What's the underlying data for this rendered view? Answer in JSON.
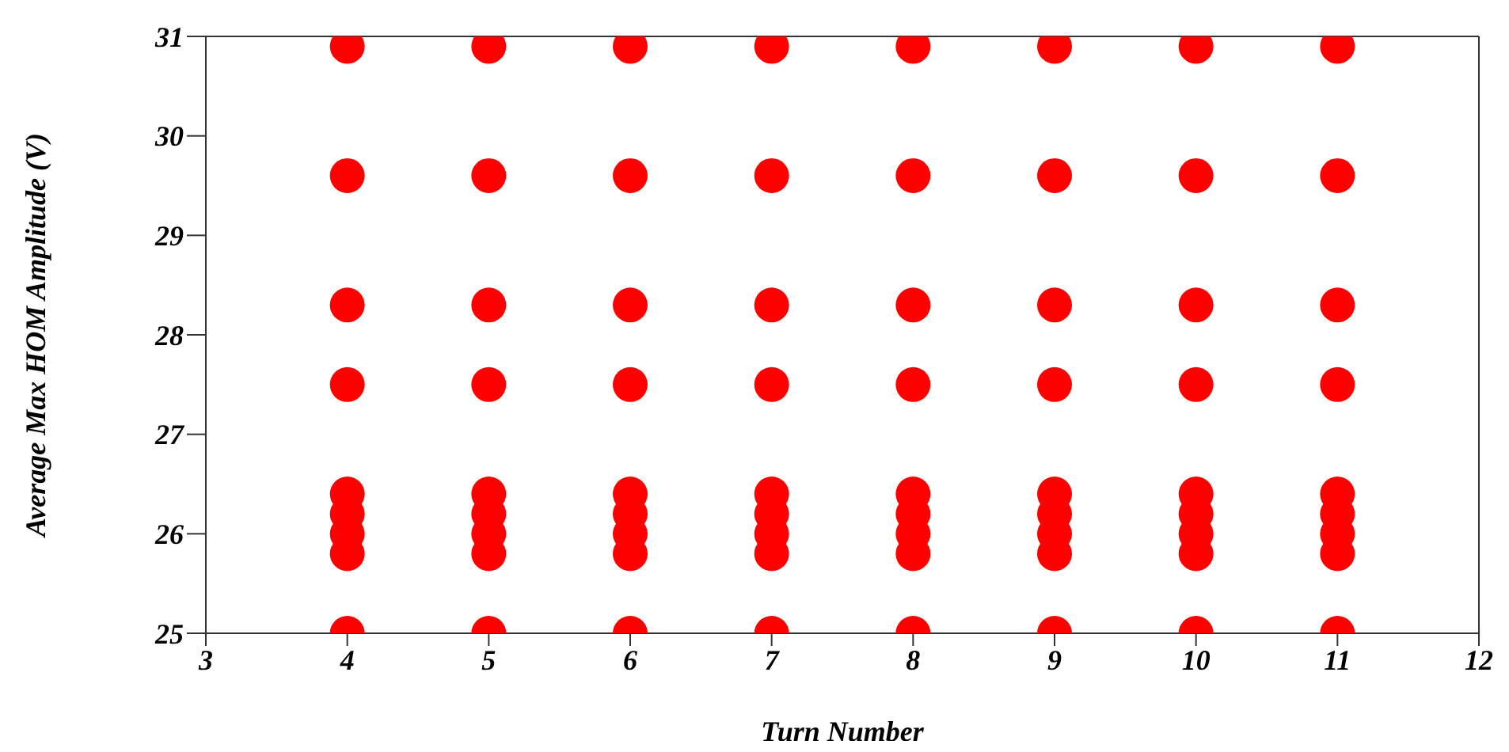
{
  "chart_data": {
    "type": "scatter",
    "xlabel": "Turn Number",
    "ylabel": "Average Max HOM Amplitude (V)",
    "xlim": [
      3,
      12
    ],
    "xticks": [
      3,
      4,
      5,
      6,
      7,
      8,
      9,
      10,
      11,
      12
    ],
    "ylim": [
      25,
      31
    ],
    "yticks": [
      25,
      26,
      27,
      28,
      29,
      30,
      31
    ],
    "legend": false,
    "marker": "circle",
    "series": [
      {
        "color": "#ff0000",
        "x": [
          4,
          4,
          4,
          4,
          4,
          4,
          4,
          4,
          4,
          5,
          5,
          5,
          5,
          5,
          5,
          5,
          5,
          5,
          6,
          6,
          6,
          6,
          6,
          6,
          6,
          6,
          6,
          7,
          7,
          7,
          7,
          7,
          7,
          7,
          7,
          7,
          8,
          8,
          8,
          8,
          8,
          8,
          8,
          8,
          8,
          9,
          9,
          9,
          9,
          9,
          9,
          9,
          9,
          9,
          10,
          10,
          10,
          10,
          10,
          10,
          10,
          10,
          10,
          11,
          11,
          11,
          11,
          11,
          11,
          11,
          11,
          11
        ],
        "values": [
          25.0,
          25.8,
          26.0,
          26.2,
          26.4,
          27.5,
          28.3,
          29.6,
          30.9,
          25.0,
          25.8,
          26.0,
          26.2,
          26.4,
          27.5,
          28.3,
          29.6,
          30.9,
          25.0,
          25.8,
          26.0,
          26.2,
          26.4,
          27.5,
          28.3,
          29.6,
          30.9,
          25.0,
          25.8,
          26.0,
          26.2,
          26.4,
          27.5,
          28.3,
          29.6,
          30.9,
          25.0,
          25.8,
          26.0,
          26.2,
          26.4,
          27.5,
          28.3,
          29.6,
          30.9,
          25.0,
          25.8,
          26.0,
          26.2,
          26.4,
          27.5,
          28.3,
          29.6,
          30.9,
          25.0,
          25.8,
          26.0,
          26.2,
          26.4,
          27.5,
          28.3,
          29.6,
          30.9,
          25.0,
          25.8,
          26.0,
          26.2,
          26.4,
          27.5,
          28.3,
          29.6,
          30.9
        ]
      }
    ]
  }
}
